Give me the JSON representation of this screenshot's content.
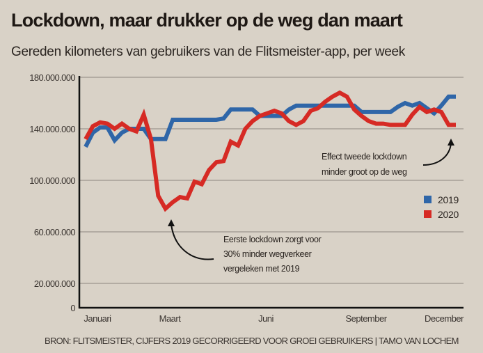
{
  "title": "Lockdown, maar drukker op de weg dan maart",
  "subtitle": "Gereden kilometers van gebruikers van de Flitsmeister-app, per week",
  "source": "BRON: FLITSMEISTER, CIJFERS 2019 GECORRIGEERD VOOR GROEI GEBRUIKERS | TAMO VAN LOCHEM",
  "chart_data": {
    "type": "line",
    "title": "Lockdown, maar drukker op de weg dan maart",
    "subtitle": "Gereden kilometers van gebruikers van de Flitsmeister-app, per week",
    "xlabel": "",
    "ylabel": "",
    "ylim": [
      0,
      180000000
    ],
    "yticks": [
      0,
      20000000,
      60000000,
      100000000,
      140000000,
      180000000
    ],
    "ytick_labels": [
      "0",
      "20.000.000",
      "60.000.000",
      "100.000.000",
      "140.000.000",
      "180.000.000"
    ],
    "xlim": [
      1,
      52
    ],
    "xticks": [
      {
        "label": "Januari",
        "week": 2
      },
      {
        "label": "Maart",
        "week": 10
      },
      {
        "label": "Juni",
        "week": 23
      },
      {
        "label": "September",
        "week": 36
      },
      {
        "label": "December",
        "week": 48
      }
    ],
    "grid": true,
    "legend_position": "right",
    "series": [
      {
        "name": "2019",
        "color": "#2f66a8",
        "x": [
          1,
          2,
          3,
          4,
          5,
          6,
          7,
          8,
          9,
          10,
          11,
          12,
          13,
          14,
          15,
          16,
          17,
          18,
          19,
          20,
          21,
          22,
          23,
          24,
          25,
          26,
          27,
          28,
          29,
          30,
          31,
          32,
          33,
          34,
          35,
          36,
          37,
          38,
          39,
          40,
          41,
          42,
          43,
          44,
          45,
          46,
          47,
          48,
          49,
          50,
          51,
          52
        ],
        "values": [
          126000000,
          137000000,
          141000000,
          141000000,
          131000000,
          137000000,
          140000000,
          140000000,
          140000000,
          132000000,
          132000000,
          132000000,
          147000000,
          147000000,
          147000000,
          147000000,
          147000000,
          147000000,
          147000000,
          148000000,
          155000000,
          155000000,
          155000000,
          155000000,
          150000000,
          150000000,
          150000000,
          150000000,
          155000000,
          158000000,
          158000000,
          158000000,
          158000000,
          158000000,
          158000000,
          158000000,
          158000000,
          158000000,
          153000000,
          153000000,
          153000000,
          153000000,
          153000000,
          157000000,
          160000000,
          158000000,
          160000000,
          156000000,
          152000000,
          158000000,
          165000000,
          165000000
        ]
      },
      {
        "name": "2020",
        "color": "#d62a24",
        "x": [
          1,
          2,
          3,
          4,
          5,
          6,
          7,
          8,
          9,
          10,
          11,
          12,
          13,
          14,
          15,
          16,
          17,
          18,
          19,
          20,
          21,
          22,
          23,
          24,
          25,
          26,
          27,
          28,
          29,
          30,
          31,
          32,
          33,
          34,
          35,
          36,
          37,
          38,
          39,
          40,
          41,
          42,
          43,
          44,
          45,
          46,
          47,
          48,
          49,
          50,
          51,
          52
        ],
        "values": [
          132000000,
          142000000,
          145000000,
          144000000,
          140000000,
          144000000,
          140000000,
          138000000,
          151000000,
          132000000,
          88000000,
          78000000,
          83000000,
          87000000,
          86000000,
          99000000,
          97000000,
          108000000,
          114000000,
          115000000,
          130000000,
          127000000,
          140000000,
          146000000,
          150000000,
          152000000,
          154000000,
          152000000,
          146000000,
          143000000,
          146000000,
          154000000,
          156000000,
          161000000,
          165000000,
          168000000,
          165000000,
          155000000,
          150000000,
          146000000,
          144000000,
          144000000,
          143000000,
          143000000,
          143000000,
          151000000,
          157000000,
          153000000,
          155000000,
          153000000,
          143000000,
          143000000
        ]
      }
    ],
    "annotations": [
      {
        "lines": [
          "Eerste lockdown zorgt voor",
          "30% minder wegverkeer",
          "vergeleken met 2019"
        ],
        "points_to": "2020 dip in maart"
      },
      {
        "lines": [
          "Effect tweede lockdown",
          "minder groot op de weg"
        ],
        "points_to": "2020 eind december"
      }
    ]
  },
  "legend": [
    {
      "label": "2019",
      "color": "#2f66a8"
    },
    {
      "label": "2020",
      "color": "#d62a24"
    }
  ]
}
